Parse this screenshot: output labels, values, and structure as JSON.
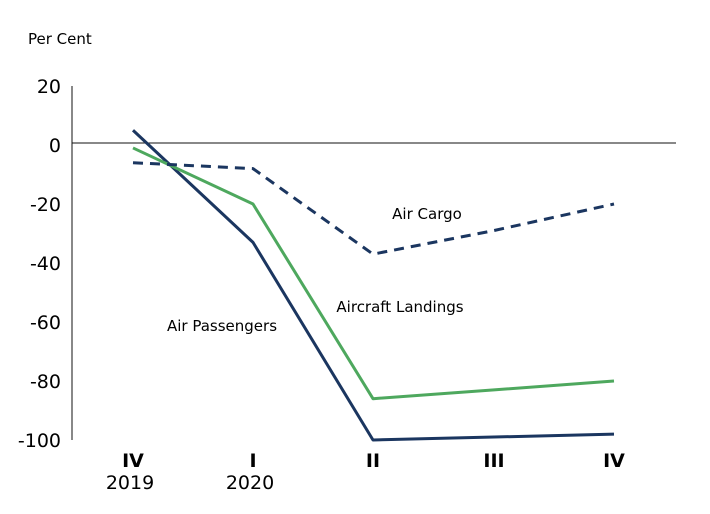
{
  "chart_data": {
    "type": "line",
    "title": "",
    "ylabel": "Per Cent",
    "ylim": [
      -100,
      20
    ],
    "yticks": [
      "20",
      "0",
      "-20",
      "-40",
      "-60",
      "-80",
      "-100"
    ],
    "categories": [
      {
        "quarter": "IV",
        "year": "2019"
      },
      {
        "quarter": "I",
        "year": "2020"
      },
      {
        "quarter": "II",
        "year": ""
      },
      {
        "quarter": "III",
        "year": ""
      },
      {
        "quarter": "IV",
        "year": ""
      }
    ],
    "series": [
      {
        "name": "Air Passengers",
        "color": "#1b3660",
        "style": "solid",
        "points": [
          [
            0,
            5
          ],
          [
            1,
            -33
          ],
          [
            2,
            -100
          ],
          [
            3,
            -99
          ],
          [
            4,
            -98
          ]
        ]
      },
      {
        "name": "Aircraft Landings",
        "color": "#4ea85e",
        "style": "solid",
        "points": [
          [
            0,
            -1
          ],
          [
            1,
            -20
          ],
          [
            2,
            -86
          ],
          [
            3,
            -83
          ],
          [
            4,
            -80
          ]
        ]
      },
      {
        "name": "Air Cargo",
        "color": "#1b3660",
        "style": "dashed",
        "points": [
          [
            0,
            -6
          ],
          [
            1,
            -8
          ],
          [
            2,
            -37
          ],
          [
            3,
            -29
          ],
          [
            4,
            -20
          ]
        ]
      }
    ],
    "grid": false,
    "legend": "inline"
  }
}
